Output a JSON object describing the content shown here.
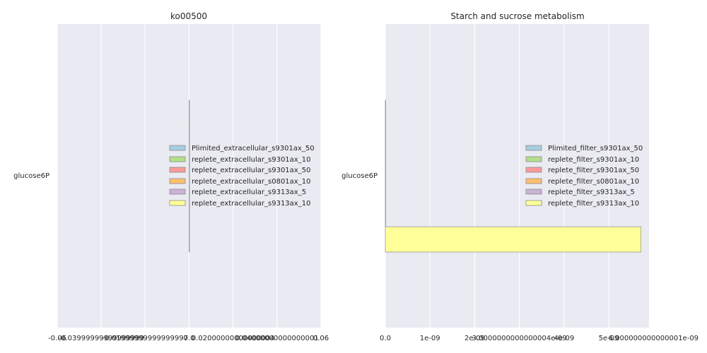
{
  "chart_data": [
    {
      "type": "bar",
      "orientation": "horizontal",
      "title": "ko00500",
      "xlabel": "",
      "ylabel": "",
      "categories": [
        "glucose6P"
      ],
      "xlim": [
        -0.06,
        0.06
      ],
      "x_tick_labels": [
        "-0.06",
        "-0.03999999999999999",
        "-0.01999999999999997",
        "0.0",
        "0.02000000000000004",
        "0.04000000000000001",
        "0.06"
      ],
      "x_tick_values": [
        -0.06,
        -0.04,
        -0.02,
        0.0,
        0.02,
        0.04,
        0.06
      ],
      "grid": true,
      "legend_position": "right",
      "series": [
        {
          "name": "Plimited_extracellular_s9301ax_50",
          "values": [
            0
          ],
          "color": "#a6cee3"
        },
        {
          "name": "replete_extracellular_s9301ax_10",
          "values": [
            0
          ],
          "color": "#b2df8a"
        },
        {
          "name": "replete_extracellular_s9301ax_50",
          "values": [
            0
          ],
          "color": "#fb9a99"
        },
        {
          "name": "replete_extracellular_s0801ax_10",
          "values": [
            0
          ],
          "color": "#fdbf6f"
        },
        {
          "name": "replete_extracellular_s9313ax_5",
          "values": [
            0
          ],
          "color": "#cab2d6"
        },
        {
          "name": "replete_extracellular_s9313ax_10",
          "values": [
            0
          ],
          "color": "#ffff99"
        }
      ]
    },
    {
      "type": "bar",
      "orientation": "horizontal",
      "title": "Starch and sucrose metabolism",
      "xlabel": "",
      "ylabel": "",
      "categories": [
        "glucose6P"
      ],
      "xlim": [
        0,
        5.9e-09
      ],
      "x_tick_labels": [
        "0.0",
        "1e-09",
        "2e-09",
        "3.0000000000000004e-09",
        "4e-09",
        "5e-09",
        "6.000000000000001e-09"
      ],
      "x_tick_values": [
        0,
        1e-09,
        2e-09,
        3e-09,
        4e-09,
        5e-09,
        6e-09
      ],
      "grid": true,
      "legend_position": "right",
      "series": [
        {
          "name": "Plimited_filter_s9301ax_50",
          "values": [
            0
          ],
          "color": "#a6cee3"
        },
        {
          "name": "replete_filter_s9301ax_10",
          "values": [
            0
          ],
          "color": "#b2df8a"
        },
        {
          "name": "replete_filter_s9301ax_50",
          "values": [
            0
          ],
          "color": "#fb9a99"
        },
        {
          "name": "replete_filter_s0801ax_10",
          "values": [
            0
          ],
          "color": "#fdbf6f"
        },
        {
          "name": "replete_filter_s9313ax_5",
          "values": [
            0
          ],
          "color": "#cab2d6"
        },
        {
          "name": "replete_filter_s9313ax_10",
          "values": [
            5.72e-09
          ],
          "color": "#ffff99"
        }
      ]
    }
  ],
  "style": {
    "plot_background": "#eaeaf2",
    "grid_color": "#ffffff",
    "text_color": "#262626",
    "bar_edge": "#9a9a9a"
  }
}
